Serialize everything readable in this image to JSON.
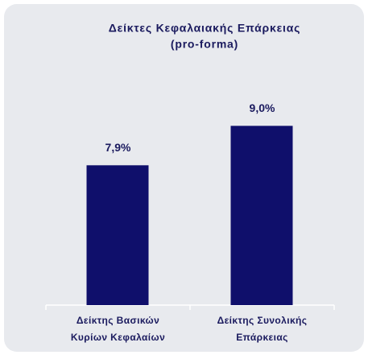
{
  "chart_data": {
    "type": "bar",
    "title": "Δείκτες Κεφαλαιακής Επάρκειας",
    "subtitle": "(pro-forma)",
    "categories": [
      "Δείκτης Βασικών Κυρίων Κεφαλαίων",
      "Δείκτης Συνολικής Επάρκειας"
    ],
    "values": [
      7.9,
      9.0
    ],
    "value_labels": [
      "7,9%",
      "9,0%"
    ],
    "color": "#0f0f6b",
    "ylim": [
      4,
      11.5
    ]
  }
}
